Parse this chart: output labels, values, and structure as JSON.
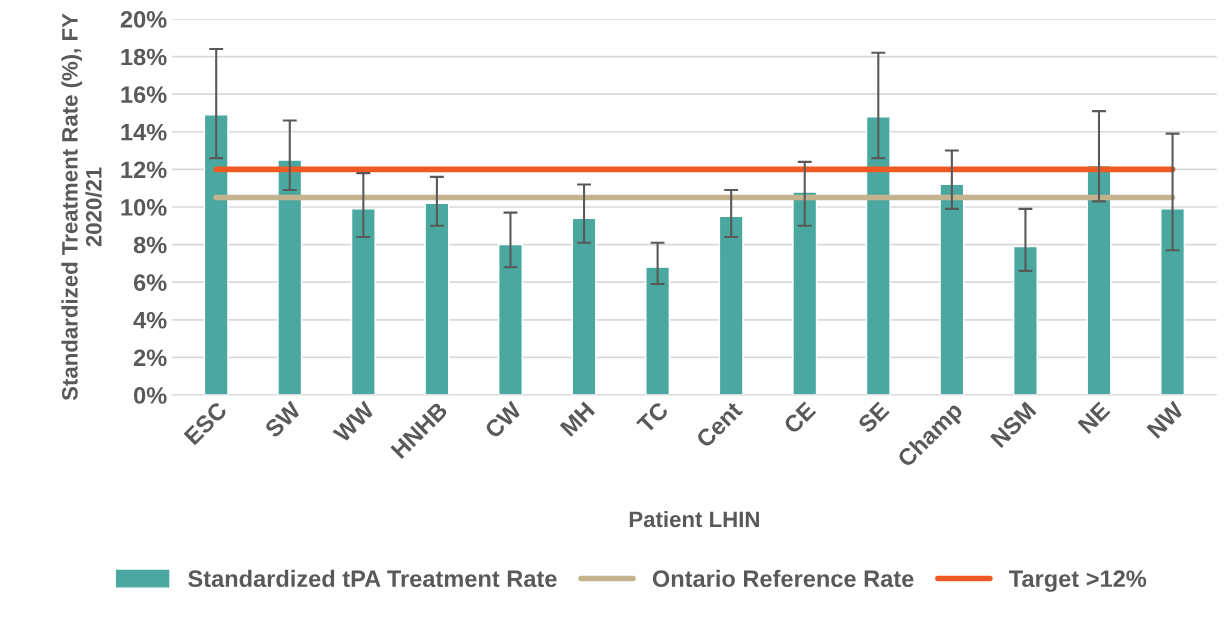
{
  "chart_data": {
    "type": "bar",
    "xlabel": "Patient LHIN",
    "ylabel": "Standardized Treatment Rate (%), FY\n2020/21",
    "categories": [
      "ESC",
      "SW",
      "WW",
      "HNHB",
      "CW",
      "MH",
      "TC",
      "Cent",
      "CE",
      "SE",
      "Champ",
      "NSM",
      "NE",
      "NW"
    ],
    "series": [
      {
        "name": "Standardized tPA Treatment Rate",
        "color": "#4aa8a0",
        "values": [
          14.9,
          12.5,
          9.9,
          10.2,
          8.0,
          9.4,
          6.8,
          9.5,
          10.8,
          14.8,
          11.2,
          7.9,
          12.2,
          9.9
        ],
        "errors": [
          [
            12.6,
            18.4
          ],
          [
            10.9,
            14.6
          ],
          [
            8.4,
            11.8
          ],
          [
            9.0,
            11.6
          ],
          [
            6.8,
            9.7
          ],
          [
            8.1,
            11.2
          ],
          [
            5.9,
            8.1
          ],
          [
            8.4,
            10.9
          ],
          [
            9.0,
            12.4
          ],
          [
            12.6,
            18.2
          ],
          [
            9.9,
            13.0
          ],
          [
            6.6,
            9.9
          ],
          [
            10.3,
            15.1
          ],
          [
            7.7,
            13.9
          ]
        ]
      },
      {
        "name": "Ontario Reference Rate",
        "type": "line",
        "color": "#c4b48e",
        "values": [
          10.5,
          10.5,
          10.5,
          10.5,
          10.5,
          10.5,
          10.5,
          10.5,
          10.5,
          10.5,
          10.5,
          10.5,
          10.5,
          10.5
        ]
      },
      {
        "name": "Target >12%",
        "type": "line",
        "color": "#f05a22",
        "values": [
          12,
          12,
          12,
          12,
          12,
          12,
          12,
          12,
          12,
          12,
          12,
          12,
          12,
          12
        ]
      }
    ],
    "ylim": [
      0,
      20
    ],
    "yticks": [
      {
        "value": 0,
        "label": "0%"
      },
      {
        "value": 2,
        "label": "2%"
      },
      {
        "value": 4,
        "label": "4%"
      },
      {
        "value": 6,
        "label": "6%"
      },
      {
        "value": 8,
        "label": "8%"
      },
      {
        "value": 10,
        "label": "10%"
      },
      {
        "value": 12,
        "label": "12%"
      },
      {
        "value": 14,
        "label": "14%"
      },
      {
        "value": 16,
        "label": "16%"
      },
      {
        "value": 18,
        "label": "18%"
      },
      {
        "value": 20,
        "label": "20%"
      }
    ],
    "grid": "y",
    "legend": "bottom"
  }
}
